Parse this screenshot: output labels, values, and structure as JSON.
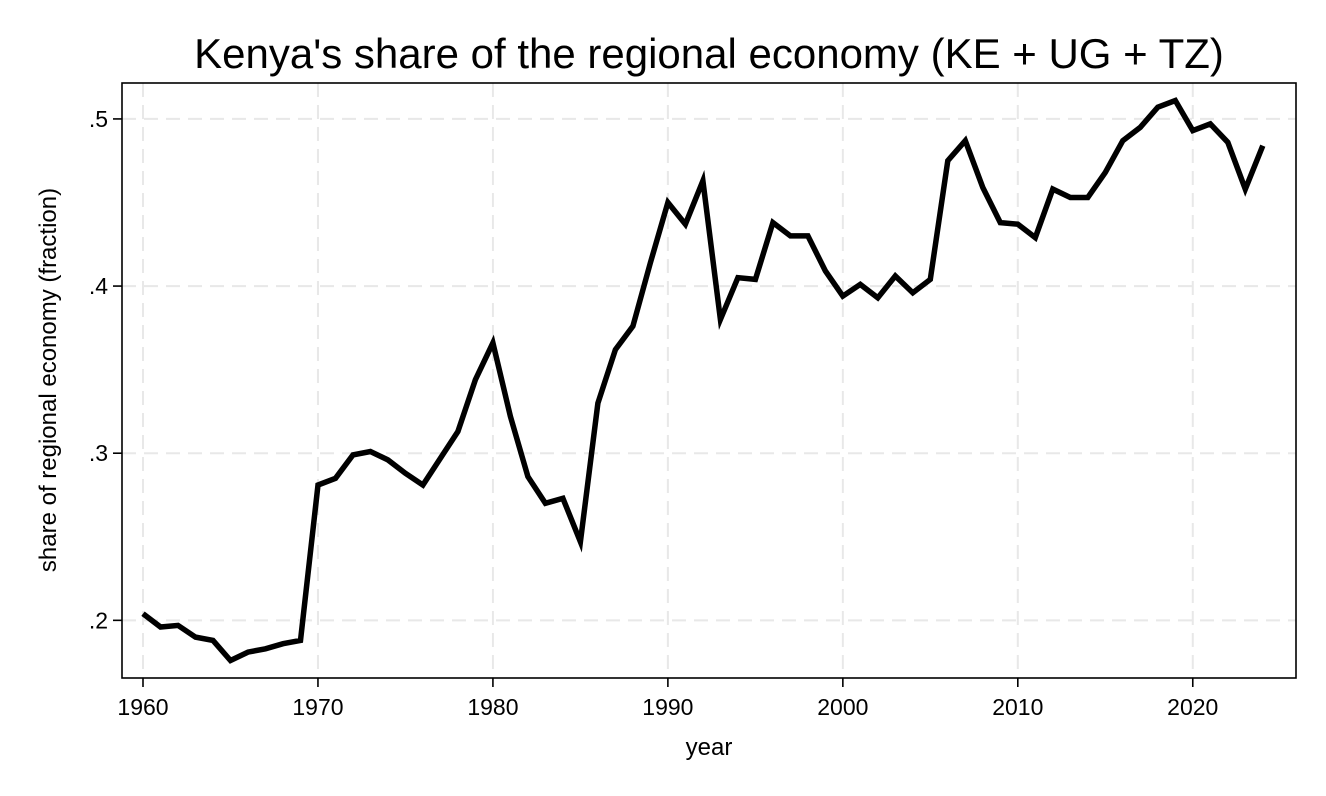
{
  "chart_data": {
    "type": "line",
    "title": "Kenya's share of the regional economy (KE + UG + TZ)",
    "xlabel": "year",
    "ylabel": "share of regional economy (fraction)",
    "xlim": [
      1958.8,
      2025.9
    ],
    "ylim": [
      0.1655,
      0.5215
    ],
    "xticks": [
      1960,
      1970,
      1980,
      1990,
      2000,
      2010,
      2020
    ],
    "xtick_labels": [
      "1960",
      "1970",
      "1980",
      "1990",
      "2000",
      "2010",
      "2020"
    ],
    "yticks": [
      0.2,
      0.3,
      0.4,
      0.5
    ],
    "ytick_labels": [
      ".2",
      ".3",
      ".4",
      ".5"
    ],
    "grid": true,
    "legend": "none",
    "line_color": "#000000",
    "series": [
      {
        "x": [
          1960,
          1961,
          1962,
          1963,
          1964,
          1965,
          1966,
          1967,
          1968,
          1969,
          1970,
          1971,
          1972,
          1973,
          1974,
          1975,
          1976,
          1977,
          1978,
          1979,
          1980,
          1981,
          1982,
          1983,
          1984,
          1985,
          1986,
          1987,
          1988,
          1989,
          1990,
          1991,
          1992,
          1993,
          1994,
          1995,
          1996,
          1997,
          1998,
          1999,
          2000,
          2001,
          2002,
          2003,
          2004,
          2005,
          2006,
          2007,
          2008,
          2009,
          2010,
          2011,
          2012,
          2013,
          2014,
          2015,
          2016,
          2017,
          2018,
          2019,
          2020,
          2021,
          2022,
          2023,
          2024
        ],
        "values": [
          0.204,
          0.196,
          0.197,
          0.19,
          0.188,
          0.176,
          0.181,
          0.183,
          0.186,
          0.188,
          0.281,
          0.285,
          0.299,
          0.301,
          0.296,
          0.288,
          0.281,
          0.297,
          0.313,
          0.344,
          0.366,
          0.322,
          0.286,
          0.27,
          0.273,
          0.247,
          0.33,
          0.362,
          0.376,
          0.414,
          0.45,
          0.437,
          0.463,
          0.38,
          0.405,
          0.404,
          0.438,
          0.43,
          0.43,
          0.409,
          0.394,
          0.401,
          0.393,
          0.406,
          0.396,
          0.404,
          0.475,
          0.487,
          0.459,
          0.438,
          0.437,
          0.429,
          0.458,
          0.453,
          0.453,
          0.468,
          0.487,
          0.495,
          0.507,
          0.511,
          0.493,
          0.497,
          0.486,
          0.458,
          0.484
        ]
      }
    ]
  }
}
